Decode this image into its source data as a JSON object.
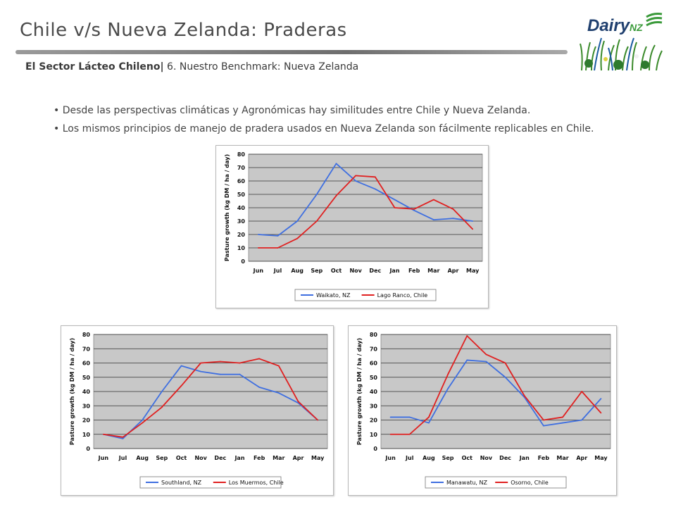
{
  "header": {
    "title": "Chile v/s Nueva Zelanda: Praderas",
    "subtitle_bold": "El Sector Lácteo Chileno|",
    "subtitle_rest": " 6. Nuestro Benchmark: Nueva Zelanda"
  },
  "logo": {
    "brand_text": "Dairy",
    "brand_suffix": "NZ",
    "brand_color": "#1f3f6e",
    "accent_color": "#3a9a3a"
  },
  "bullets": [
    "• Desde las  perspectivas climáticas y Agronómicas hay similitudes entre Chile y Nueva Zelanda.",
    "•  Los mismos principios de manejo de pradera usados en Nueva Zelanda son fácilmente replicables en Chile."
  ],
  "colors": {
    "nz": "#3f6fe0",
    "chile": "#e02020",
    "plot_bg": "#c8c8c8"
  },
  "chart_data": [
    {
      "type": "line",
      "ylabel": "Pasture growth (kg DM / ha / day)",
      "ylim": [
        0,
        80
      ],
      "yticks": [
        "0",
        "10",
        "20",
        "30",
        "40",
        "50",
        "60",
        "70",
        "80"
      ],
      "categories": [
        "Jun",
        "Jul",
        "Aug",
        "Sep",
        "Oct",
        "Nov",
        "Dec",
        "Jan",
        "Feb",
        "Mar",
        "Apr",
        "May"
      ],
      "grid": true,
      "legend_position": "bottom",
      "series": [
        {
          "name": "Waikato, NZ",
          "color": "#3f6fe0",
          "values": [
            20,
            19,
            30,
            50,
            73,
            60,
            54,
            46,
            38,
            31,
            32,
            30
          ]
        },
        {
          "name": "Lago Ranco, Chile",
          "color": "#e02020",
          "values": [
            10,
            10,
            17,
            30,
            49,
            64,
            63,
            40,
            39,
            46,
            39,
            24
          ]
        }
      ]
    },
    {
      "type": "line",
      "ylabel": "Pasture growth (kg DM / ha / day)",
      "ylim": [
        0,
        80
      ],
      "yticks": [
        "0",
        "10",
        "20",
        "30",
        "40",
        "50",
        "60",
        "70",
        "80"
      ],
      "categories": [
        "Jun",
        "Jul",
        "Aug",
        "Sep",
        "Oct",
        "Nov",
        "Dec",
        "Jan",
        "Feb",
        "Mar",
        "Apr",
        "May"
      ],
      "grid": true,
      "legend_position": "bottom",
      "series": [
        {
          "name": "Southland, NZ",
          "color": "#3f6fe0",
          "values": [
            10,
            7,
            20,
            40,
            58,
            54,
            52,
            52,
            43,
            39,
            32,
            20
          ]
        },
        {
          "name": "Los Muermos, Chile",
          "color": "#e02020",
          "values": [
            10,
            8,
            18,
            29,
            44,
            60,
            61,
            60,
            63,
            58,
            33,
            20
          ]
        }
      ]
    },
    {
      "type": "line",
      "ylabel": "Pasture growth (kg DM / ha / day)",
      "ylim": [
        0,
        80
      ],
      "yticks": [
        "0",
        "10",
        "20",
        "30",
        "40",
        "50",
        "60",
        "70",
        "80"
      ],
      "categories": [
        "Jun",
        "Jul",
        "Aug",
        "Sep",
        "Oct",
        "Nov",
        "Dec",
        "Jan",
        "Feb",
        "Mar",
        "Apr",
        "May"
      ],
      "grid": true,
      "legend_position": "bottom",
      "series": [
        {
          "name": "Manawatu, NZ",
          "color": "#3f6fe0",
          "values": [
            22,
            22,
            18,
            42,
            62,
            61,
            50,
            36,
            16,
            18,
            20,
            35
          ]
        },
        {
          "name": "Osorno, Chile",
          "color": "#e02020",
          "values": [
            10,
            10,
            22,
            52,
            79,
            66,
            60,
            37,
            20,
            22,
            40,
            25
          ]
        }
      ]
    }
  ]
}
